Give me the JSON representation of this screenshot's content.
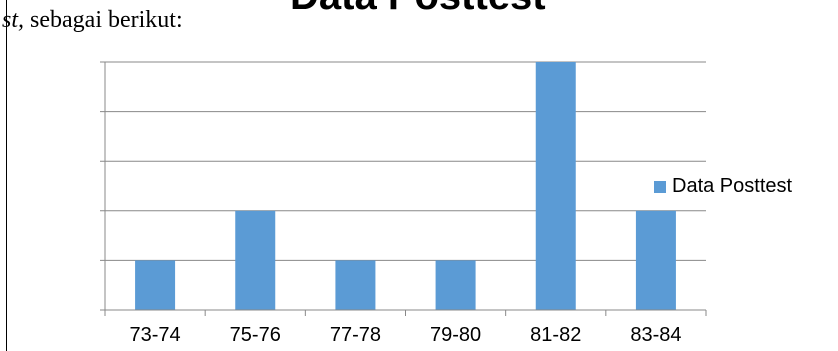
{
  "document": {
    "text_italic": "st,",
    "text_rest": " sebagai berikut:"
  },
  "chart_data": {
    "type": "bar",
    "title": "Data Posttest",
    "categories": [
      "73-74",
      "75-76",
      "77-78",
      "79-80",
      "81-82",
      "83-84"
    ],
    "series": [
      {
        "name": "Data Posttest",
        "values": [
          1,
          2,
          1,
          1,
          5,
          2
        ]
      }
    ],
    "ylim": [
      0,
      5
    ],
    "y_tick_labels_shown": false,
    "grid": true,
    "legend_position": "right",
    "colors": {
      "bar": "#5b9bd5",
      "grid": "#888888",
      "axis": "#888888"
    }
  }
}
